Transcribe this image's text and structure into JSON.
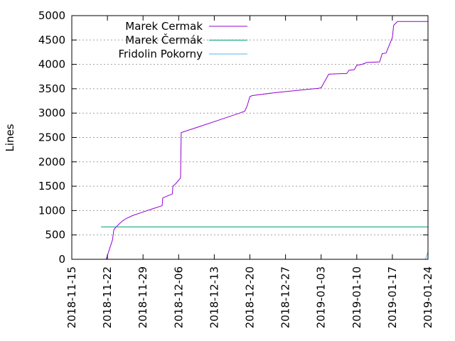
{
  "chart_data": {
    "type": "line",
    "title": "",
    "xlabel": "",
    "ylabel": "Lines",
    "x_type": "date",
    "xlim": [
      "2018-11-15",
      "2019-01-24"
    ],
    "ylim": [
      0,
      5000
    ],
    "x_ticks": [
      "2018-11-15",
      "2018-11-22",
      "2018-11-29",
      "2018-12-06",
      "2018-12-13",
      "2018-12-20",
      "2018-12-27",
      "2019-01-03",
      "2019-01-10",
      "2019-01-17",
      "2019-01-24"
    ],
    "y_ticks": [
      "0",
      "500",
      "1000",
      "1500",
      "2000",
      "2500",
      "3000",
      "3500",
      "4000",
      "4500",
      "5000"
    ],
    "grid": "y-major",
    "legend_position": "top-left",
    "series": [
      {
        "name": "Marek Cermak",
        "color": "#9400d3",
        "points": [
          [
            "2018-11-21 18:00",
            0
          ],
          [
            "2018-11-22 00:00",
            80
          ],
          [
            "2018-11-22 06:00",
            160
          ],
          [
            "2018-11-22 12:00",
            240
          ],
          [
            "2018-11-22 18:00",
            320
          ],
          [
            "2018-11-23 00:00",
            400
          ],
          [
            "2018-11-23 06:00",
            600
          ],
          [
            "2018-11-23 12:00",
            640
          ],
          [
            "2018-11-24 06:00",
            720
          ],
          [
            "2018-11-25 00:00",
            790
          ],
          [
            "2018-11-25 18:00",
            840
          ],
          [
            "2018-11-27 00:00",
            900
          ],
          [
            "2018-11-29 00:00",
            970
          ],
          [
            "2018-12-01 00:00",
            1040
          ],
          [
            "2018-12-02 18:00",
            1100
          ],
          [
            "2018-12-02 21:00",
            1260
          ],
          [
            "2018-12-04 06:00",
            1320
          ],
          [
            "2018-12-04 18:00",
            1340
          ],
          [
            "2018-12-04 21:00",
            1500
          ],
          [
            "2018-12-05 12:00",
            1560
          ],
          [
            "2018-12-06 09:00",
            1670
          ],
          [
            "2018-12-06 12:00",
            2600
          ],
          [
            "2018-12-10 00:00",
            2720
          ],
          [
            "2018-12-14 00:00",
            2860
          ],
          [
            "2018-12-18 00:00",
            3000
          ],
          [
            "2018-12-19 00:00",
            3040
          ],
          [
            "2018-12-19 12:00",
            3160
          ],
          [
            "2018-12-20 00:00",
            3340
          ],
          [
            "2018-12-20 12:00",
            3360
          ],
          [
            "2018-12-25 00:00",
            3420
          ],
          [
            "2019-01-02 12:00",
            3510
          ],
          [
            "2019-01-03 00:00",
            3520
          ],
          [
            "2019-01-04 12:00",
            3800
          ],
          [
            "2019-01-07 00:00",
            3810
          ],
          [
            "2019-01-08 00:00",
            3810
          ],
          [
            "2019-01-08 12:00",
            3880
          ],
          [
            "2019-01-09 12:00",
            3890
          ],
          [
            "2019-01-10 00:00",
            3980
          ],
          [
            "2019-01-11 00:00",
            4000
          ],
          [
            "2019-01-12 00:00",
            4040
          ],
          [
            "2019-01-14 12:00",
            4050
          ],
          [
            "2019-01-15 00:00",
            4220
          ],
          [
            "2019-01-15 18:00",
            4230
          ],
          [
            "2019-01-17 00:00",
            4550
          ],
          [
            "2019-01-17 06:00",
            4800
          ],
          [
            "2019-01-18 00:00",
            4880
          ],
          [
            "2019-01-24 00:00",
            4880
          ]
        ]
      },
      {
        "name": "Marek Čermák",
        "color": "#009e73",
        "points": [
          [
            "2018-11-20 18:00",
            665
          ],
          [
            "2019-01-24 00:00",
            665
          ]
        ]
      },
      {
        "name": "Fridolin Pokorny",
        "color": "#56b4e9",
        "points": [
          [
            "2019-01-23 12:00",
            0
          ],
          [
            "2019-01-24 00:00",
            150
          ]
        ]
      }
    ]
  }
}
